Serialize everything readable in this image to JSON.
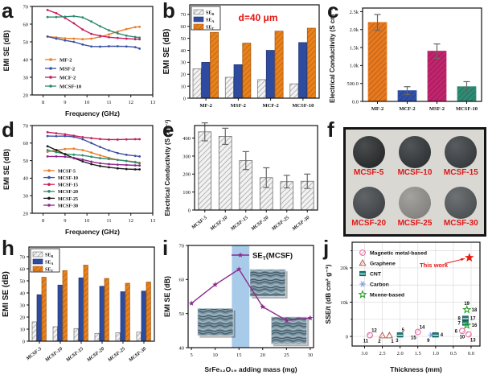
{
  "panels": {
    "a": {
      "letter": "a"
    },
    "b": {
      "letter": "b"
    },
    "c": {
      "letter": "c"
    },
    "d": {
      "letter": "d"
    },
    "e": {
      "letter": "e"
    },
    "f": {
      "letter": "f",
      "photo": {
        "samples": [
          {
            "label": "MCSF-5",
            "color": "#222527"
          },
          {
            "label": "MCSF-10",
            "color": "#2b3034"
          },
          {
            "label": "MCSF-15",
            "color": "#34393d"
          },
          {
            "label": "MCSF-20",
            "color": "#3f4346"
          },
          {
            "label": "MCSF-25",
            "color": "#8f8e8a"
          },
          {
            "label": "MCSF-30",
            "color": "#4e5356"
          }
        ]
      }
    },
    "h": {
      "letter": "h"
    },
    "i": {
      "letter": "i"
    },
    "j": {
      "letter": "j"
    }
  },
  "chart_data": [
    {
      "panel": "a",
      "type": "line",
      "xlabel": "Frequency (GHz)",
      "ylabel": "EMI SE (dB)",
      "xlim": [
        7.5,
        13
      ],
      "ylim": [
        20,
        70
      ],
      "xticks": [
        8,
        9,
        10,
        11,
        12,
        13
      ],
      "yticks": [
        20,
        30,
        40,
        50,
        60,
        70
      ],
      "legend_position": "lower-left",
      "grid": false,
      "x": [
        8.2,
        8.6,
        9.0,
        9.4,
        9.8,
        10.2,
        10.6,
        11.0,
        11.4,
        11.8,
        12.2,
        12.4
      ],
      "series": [
        {
          "name": "MF-2",
          "color": "#E87E2B",
          "y": [
            53.0,
            52.5,
            52.0,
            51.8,
            51.5,
            51.8,
            52.8,
            54.2,
            55.8,
            57.2,
            58.3,
            58.5
          ]
        },
        {
          "name": "MSF-2",
          "color": "#3952A3",
          "y": [
            53.0,
            51.8,
            50.8,
            50.0,
            48.5,
            47.4,
            47.3,
            47.5,
            47.5,
            47.4,
            47.0,
            46.2
          ]
        },
        {
          "name": "MCF-2",
          "color": "#C81E5C",
          "y": [
            68.0,
            66.2,
            63.5,
            60.5,
            57.0,
            54.5,
            53.4,
            52.6,
            52.2,
            51.8,
            51.5,
            51.5
          ]
        },
        {
          "name": "MCSF-10",
          "color": "#2E8B6F",
          "y": [
            64.0,
            64.0,
            64.2,
            64.5,
            63.8,
            61.5,
            58.8,
            56.5,
            54.8,
            53.5,
            52.7,
            52.4
          ]
        }
      ]
    },
    {
      "panel": "b",
      "type": "grouped_bar",
      "ylabel": "EMI SE (dB)",
      "annotation": "d=40 μm",
      "annotation_color": "#e81410",
      "ylim": [
        0,
        78
      ],
      "yticks": [
        0,
        10,
        20,
        30,
        40,
        50,
        60,
        70
      ],
      "categories": [
        "MF-2",
        "MSF-2",
        "MCF-2",
        "MCSF-10"
      ],
      "series": [
        {
          "name": "SE_R",
          "style": "gray-hatch",
          "values": [
            24.5,
            17.5,
            15.5,
            12.0
          ]
        },
        {
          "name": "SE_A",
          "style": "blue-solid",
          "values": [
            30.0,
            28.0,
            40.0,
            46.5
          ]
        },
        {
          "name": "SE_T",
          "style": "orange-hatch",
          "values": [
            55.0,
            46.0,
            56.0,
            58.5
          ]
        }
      ]
    },
    {
      "panel": "c",
      "type": "bar",
      "ylabel": "Electrical Conductivity (S cm⁻¹)",
      "ylim": [
        0,
        2600
      ],
      "ytick_vals": [
        0,
        500,
        1000,
        1500,
        2000,
        2500
      ],
      "ytick_labels": [
        "0.0",
        "500.0",
        "1.0k",
        "1.5k",
        "2.0k",
        "2.5k"
      ],
      "categories": [
        "MF-2",
        "MCF-2",
        "MSF-2",
        "MCSF-10"
      ],
      "values": [
        2200,
        300,
        1400,
        410
      ],
      "errors": [
        220,
        110,
        200,
        140
      ],
      "colors": [
        "#E8791E",
        "#3350A8",
        "#C2246D",
        "#2F8C74"
      ]
    },
    {
      "panel": "d",
      "type": "line",
      "xlabel": "Frequency (GHz)",
      "ylabel": "EMI SE (dB)",
      "xlim": [
        7.5,
        13
      ],
      "ylim": [
        20,
        70
      ],
      "xticks": [
        8,
        9,
        10,
        11,
        12,
        13
      ],
      "yticks": [
        20,
        30,
        40,
        50,
        60,
        70
      ],
      "legend_position": "lower-left",
      "grid": false,
      "x": [
        8.2,
        8.6,
        9.0,
        9.4,
        9.8,
        10.2,
        10.6,
        11.0,
        11.4,
        11.8,
        12.2,
        12.4
      ],
      "series": [
        {
          "name": "MCSF-5",
          "color": "#E87E2B",
          "y": [
            55.0,
            56.0,
            56.6,
            56.8,
            56.0,
            54.6,
            53.0,
            51.6,
            50.4,
            49.8,
            49.3,
            48.8
          ]
        },
        {
          "name": "MCSF-10",
          "color": "#3952A3",
          "y": [
            64.0,
            63.9,
            64.0,
            63.6,
            62.2,
            60.0,
            57.8,
            55.8,
            54.3,
            53.3,
            52.7,
            52.4
          ]
        },
        {
          "name": "MCSF-15",
          "color": "#C81E5C",
          "y": [
            66.2,
            65.6,
            65.0,
            64.2,
            63.4,
            62.8,
            62.3,
            62.0,
            62.0,
            62.1,
            62.2,
            62.2
          ]
        },
        {
          "name": "MCSF-20",
          "color": "#2E8B6F",
          "y": [
            56.0,
            54.8,
            53.8,
            53.4,
            53.0,
            52.2,
            51.4,
            50.9,
            50.4,
            49.8,
            49.0,
            48.5
          ]
        },
        {
          "name": "MCSF-25",
          "color": "#1b1b1b",
          "y": [
            58.2,
            56.0,
            53.6,
            51.4,
            49.6,
            48.0,
            46.9,
            46.2,
            45.6,
            45.2,
            45.0,
            45.0
          ]
        },
        {
          "name": "MCSF-30",
          "color": "#90278E",
          "y": [
            52.4,
            52.4,
            52.2,
            51.6,
            50.6,
            49.4,
            48.5,
            48.0,
            47.7,
            47.5,
            47.3,
            47.2
          ]
        }
      ]
    },
    {
      "panel": "e",
      "type": "bar",
      "ylabel": "Electrical Conductivity (S cm⁻¹)",
      "ylim": [
        0,
        470
      ],
      "ytick_vals": [
        0,
        100,
        200,
        300,
        400
      ],
      "ytick_labels": [
        "0",
        "100",
        "200",
        "300",
        "400"
      ],
      "categories": [
        "MCSF-5",
        "MCSF-10",
        "MCSF-15",
        "MCSF-20",
        "MCSF-25",
        "MCSF-30"
      ],
      "values": [
        435,
        410,
        275,
        180,
        158,
        160
      ],
      "errors": [
        50,
        45,
        50,
        55,
        35,
        40
      ],
      "colors": [
        "gray-hatch",
        "gray-hatch",
        "gray-hatch",
        "gray-hatch",
        "gray-hatch",
        "gray-hatch"
      ],
      "rotate_labels": true
    },
    {
      "panel": "h",
      "type": "grouped_bar",
      "ylabel": "EMI SE (dB)",
      "ylim": [
        0,
        78
      ],
      "yticks": [
        0,
        10,
        20,
        30,
        40,
        50,
        60,
        70
      ],
      "categories": [
        "MCSF-5",
        "MCSF-10",
        "MCSF-15",
        "MCSF-20",
        "MCSF-25",
        "MCSF-30"
      ],
      "rotate_labels": true,
      "series": [
        {
          "name": "SE_R",
          "style": "gray-hatch",
          "values": [
            16.0,
            12.0,
            10.5,
            6.5,
            7.0,
            7.5
          ]
        },
        {
          "name": "SE_A",
          "style": "blue-solid",
          "values": [
            38.5,
            46.5,
            52.5,
            45.5,
            41.0,
            41.5
          ]
        },
        {
          "name": "SE_T",
          "style": "orange-hatch",
          "values": [
            53.0,
            58.5,
            63.0,
            52.0,
            48.0,
            49.0
          ]
        }
      ]
    },
    {
      "panel": "i",
      "type": "line",
      "xlabel": "SrFe₁₂O₁₉ adding mass  (mg)",
      "ylabel": "EMI SE (dB)",
      "xlim": [
        4.3,
        30.7
      ],
      "ylim": [
        40,
        70
      ],
      "xticks": [
        5,
        10,
        15,
        20,
        25,
        30
      ],
      "yticks": [
        40,
        50,
        60,
        70
      ],
      "highlight_band": {
        "x1": 13.5,
        "x2": 17.2,
        "color": "#A9CBEA"
      },
      "legend_label": "SE_T(MCSF)",
      "line_color": "#8E2B8B",
      "marker": "star",
      "x": [
        5,
        10,
        15,
        20,
        25,
        30
      ],
      "series": [
        {
          "name": "SE_T(MCSF)",
          "color": "#8E2B8B",
          "y": [
            53.0,
            58.5,
            63.0,
            52.0,
            48.0,
            48.7
          ]
        }
      ],
      "insets": [
        {
          "name": "sem-image",
          "x1": 6.3,
          "x2": 13.8,
          "y1": 43.5,
          "y2": 51.5
        },
        {
          "name": "sem-image",
          "x1": 17.3,
          "x2": 24.8,
          "y1": 55.0,
          "y2": 63.0
        },
        {
          "name": "sem-image",
          "x1": 21.8,
          "x2": 29.3,
          "y1": 41.0,
          "y2": 49.0
        }
      ]
    },
    {
      "panel": "j",
      "type": "scatter",
      "xlabel": "Thickness  (mm)",
      "ylabel": "SSE/t (dB cm² g⁻¹)",
      "xlim": [
        3.35,
        -0.25
      ],
      "ylim": [
        -2800,
        27500
      ],
      "grid": true,
      "xticks": [
        3.0,
        2.5,
        2.0,
        1.5,
        1.0,
        0.5,
        0.0
      ],
      "ytick_vals": [
        0,
        10000,
        20000
      ],
      "ytick_labels": [
        "0",
        "10k",
        "20k"
      ],
      "ytick_minor": [
        5000,
        15000,
        25000
      ],
      "legend": [
        {
          "label": "Magnetic metal-based",
          "marker": "magnetic",
          "color": "#E8649B"
        },
        {
          "label": "Graphene",
          "marker": "graphene",
          "color": "#B06050"
        },
        {
          "label": "CNT",
          "marker": "cnt",
          "color": "#1A7F7C"
        },
        {
          "label": "Carbon",
          "marker": "carbon",
          "color": "#7B9BE8"
        },
        {
          "label": "Mxene-based",
          "marker": "mxene",
          "color": "#2CA02C"
        }
      ],
      "annotation": {
        "text": "This work",
        "color": "#e81410",
        "x": 1.05,
        "y": 20200,
        "arrow_from": {
          "x": 0.72,
          "y": 21300
        },
        "arrow_to": {
          "x": 0.18,
          "y": 22700
        }
      },
      "points": [
        {
          "x": 2.85,
          "y": 350,
          "marker": "magnetic",
          "labels": [
            {
              "t": "11",
              "p": "bl"
            },
            {
              "t": "12",
              "p": "tr"
            }
          ]
        },
        {
          "x": 2.5,
          "y": 250,
          "marker": "graphene",
          "labels": [
            {
              "t": "2",
              "p": "bl"
            }
          ]
        },
        {
          "x": 2.3,
          "y": 250,
          "marker": "graphene",
          "labels": [
            {
              "t": "1",
              "p": "br"
            }
          ]
        },
        {
          "x": 2.0,
          "y": 450,
          "marker": "cnt",
          "labels": [
            {
              "t": "3",
              "p": "bl"
            },
            {
              "t": "5",
              "p": "tr"
            }
          ]
        },
        {
          "x": 1.5,
          "y": 1300,
          "marker": "magnetic",
          "labels": [
            {
              "t": "15",
              "p": "bl"
            },
            {
              "t": "14",
              "p": "tr"
            }
          ]
        },
        {
          "x": 1.12,
          "y": 450,
          "marker": "carbon",
          "labels": [
            {
              "t": "9",
              "p": "bl"
            }
          ]
        },
        {
          "x": 1.0,
          "y": 450,
          "marker": "cnt",
          "labels": [
            {
              "t": "4",
              "p": "r"
            }
          ]
        },
        {
          "x": 0.25,
          "y": 1600,
          "marker": "magnetic",
          "labels": [
            {
              "t": "6",
              "p": "l"
            },
            {
              "t": "10",
              "p": "b"
            }
          ]
        },
        {
          "x": 0.07,
          "y": 600,
          "marker": "magnetic",
          "labels": [
            {
              "t": "13",
              "p": "br"
            }
          ]
        },
        {
          "x": 0.16,
          "y": 5300,
          "marker": "cnt",
          "labels": [
            {
              "t": "8",
              "p": "l"
            },
            {
              "t": "17",
              "p": "r"
            }
          ]
        },
        {
          "x": 0.16,
          "y": 3900,
          "marker": "cnt",
          "labels": [
            {
              "t": "7",
              "p": "l"
            }
          ]
        },
        {
          "x": 0.12,
          "y": 3300,
          "marker": "mxene",
          "labels": [
            {
              "t": "16",
              "p": "r"
            }
          ]
        },
        {
          "x": 0.12,
          "y": 7800,
          "marker": "mxene",
          "labels": [
            {
              "t": "18",
              "p": "r"
            },
            {
              "t": "19",
              "p": "t"
            }
          ]
        },
        {
          "x": 0.05,
          "y": 23000,
          "marker": "thiswork",
          "labels": []
        }
      ]
    }
  ]
}
